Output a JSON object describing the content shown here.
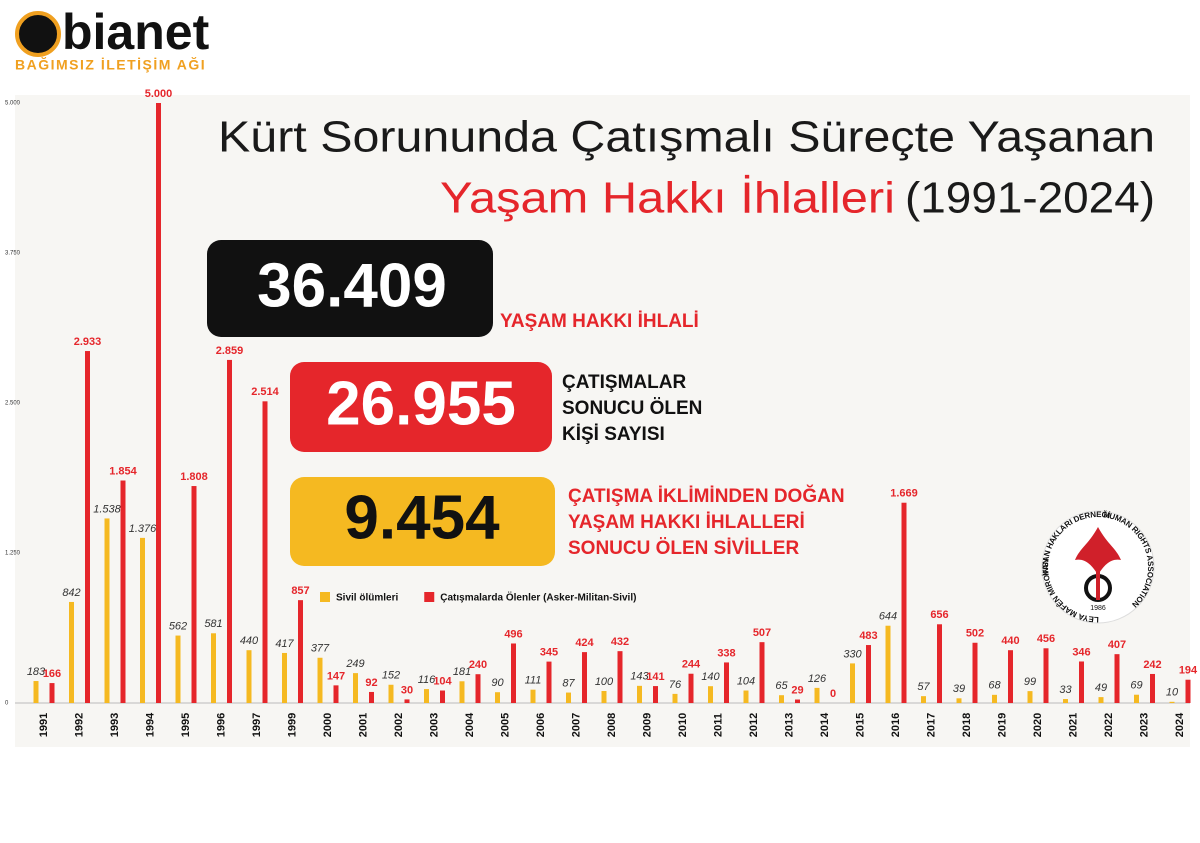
{
  "logo": {
    "name": "bianet",
    "tagline": "BAĞIMSIZ İLETİŞİM AĞI"
  },
  "headline": {
    "line1": "Kürt Sorununda Çatışmalı Süreçte Yaşanan",
    "line2_highlight": "Yaşam Hakkı İhlalleri",
    "line2_period": "(1991-2024)"
  },
  "summary": [
    {
      "number": "36.409",
      "label_lines": [
        "YAŞAM HAKKI İHLALİ"
      ]
    },
    {
      "number": "26.955",
      "label_lines": [
        "ÇATIŞMALAR",
        "SONUCU ÖLEN",
        "KİŞİ SAYISI"
      ]
    },
    {
      "number": "9.454",
      "label_lines": [
        "ÇATIŞMA İKLİMİNDEN DOĞAN",
        "YAŞAM HAKKI İHLALLERİ",
        "SONUCU ÖLEN SİVİLLER"
      ]
    }
  ],
  "emblem": {
    "top": "İNSAN HAKLARI DERNEĞİ",
    "right": "HUMAN RIGHTS ASSOCIATION",
    "left": "KOMELEYA MAFÊN MIROVAN",
    "year": "1986"
  },
  "chart_data": {
    "type": "bar",
    "categories": [
      "1991",
      "1992",
      "1993",
      "1994",
      "1995",
      "1996",
      "1997",
      "1999",
      "2000",
      "2001",
      "2002",
      "2003",
      "2004",
      "2005",
      "2006",
      "2007",
      "2008",
      "2009",
      "2010",
      "2011",
      "2012",
      "2013",
      "2014",
      "2015",
      "2016",
      "2017",
      "2018",
      "2019",
      "2020",
      "2021",
      "2022",
      "2023",
      "2024"
    ],
    "series": [
      {
        "name": "Sivil ölümleri",
        "color": "#f5b921",
        "values": [
          183,
          842,
          1538,
          1376,
          562,
          581,
          440,
          417,
          377,
          249,
          152,
          116,
          181,
          90,
          111,
          87,
          100,
          143,
          76,
          140,
          104,
          65,
          126,
          330,
          644,
          57,
          39,
          68,
          99,
          33,
          49,
          69,
          10
        ],
        "value_labels": [
          "183",
          "842",
          "1.538",
          "1.376",
          "562",
          "581",
          "440",
          "417",
          "377",
          "249",
          "152",
          "116",
          "181",
          "90",
          "111",
          "87",
          "100",
          "143",
          "76",
          "140",
          "104",
          "65",
          "126",
          "330",
          "644",
          "57",
          "39",
          "68",
          "99",
          "33",
          "49",
          "69",
          "10"
        ]
      },
      {
        "name": "Çatışmalarda Ölenler (Asker-Militan-Sivil)",
        "color": "#e5262b",
        "values": [
          166,
          2933,
          1854,
          5000,
          1808,
          2859,
          2514,
          857,
          147,
          92,
          30,
          104,
          240,
          496,
          345,
          424,
          432,
          141,
          244,
          338,
          507,
          29,
          0,
          483,
          1669,
          656,
          502,
          440,
          456,
          346,
          407,
          242,
          194
        ],
        "value_labels": [
          "166",
          "2.933",
          "1.854",
          "5.000",
          "1.808",
          "2.859",
          "2.514",
          "857",
          "147",
          "92",
          "30",
          "104",
          "240",
          "496",
          "345",
          "424",
          "432",
          "141",
          "244",
          "338",
          "507",
          "29",
          "0",
          "483",
          "1.669",
          "656",
          "502",
          "440",
          "456",
          "346",
          "407",
          "242",
          "194"
        ]
      }
    ],
    "ylim": [
      0,
      5000
    ],
    "yticks": [
      0,
      {
        "value": 1250,
        "label": "1.250"
      },
      {
        "value": 2500,
        "label": "2.500"
      },
      {
        "value": 3750,
        "label": "3.750"
      },
      {
        "value": 5000,
        "label": "5.000"
      }
    ],
    "grid": false
  }
}
